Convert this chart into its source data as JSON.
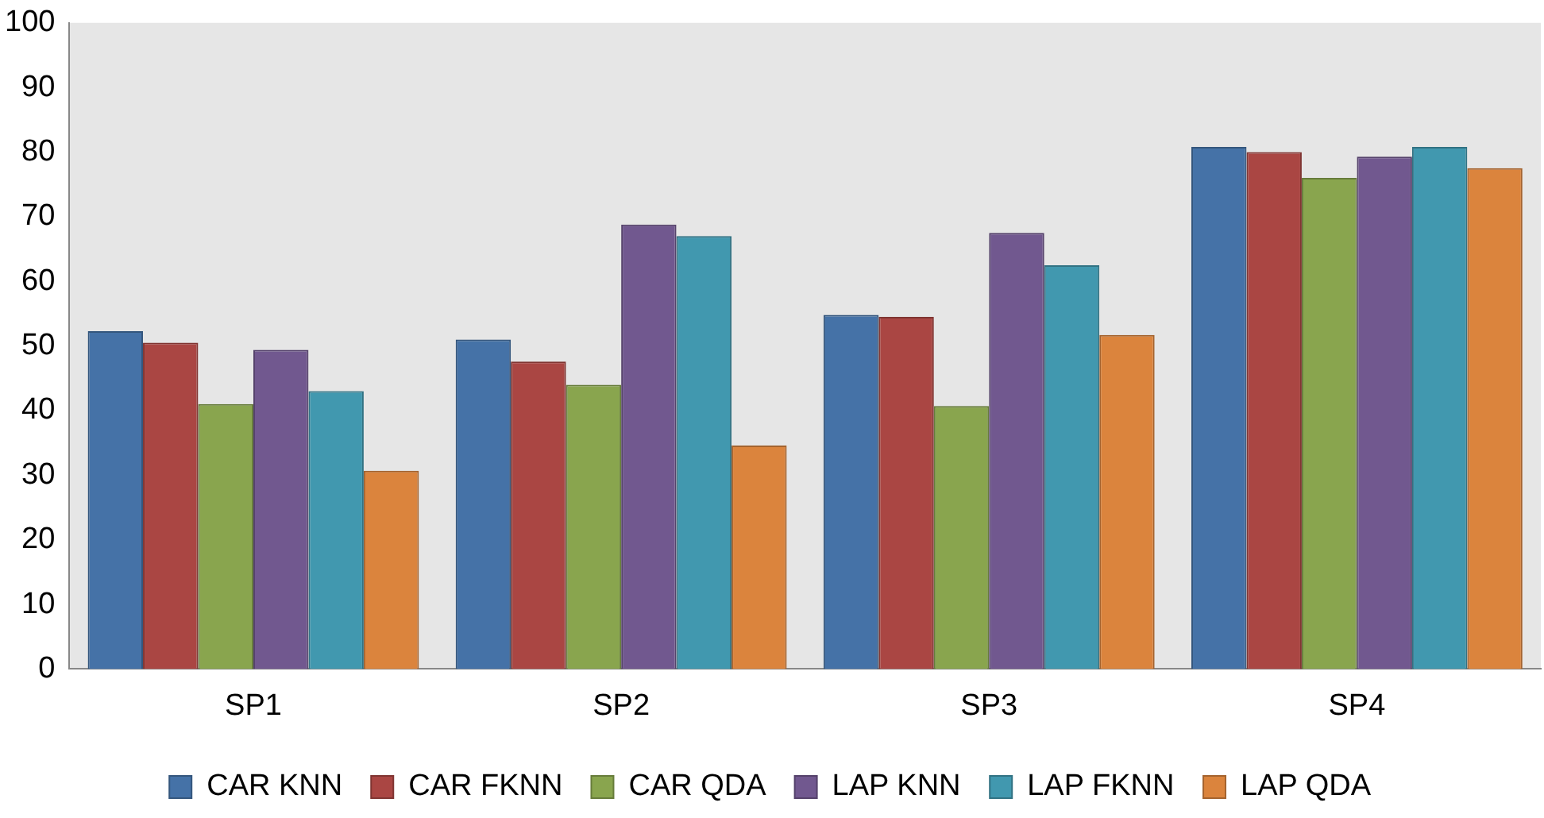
{
  "chart_data": {
    "type": "bar",
    "categories": [
      "SP1",
      "SP2",
      "SP3",
      "SP4"
    ],
    "series": [
      {
        "name": "CAR KNN",
        "color": "#4572a7",
        "values": [
          52.3,
          51,
          54.8,
          80.8
        ]
      },
      {
        "name": "CAR FKNN",
        "color": "#aa4643",
        "values": [
          50.5,
          47.6,
          54.5,
          80
        ]
      },
      {
        "name": "CAR QDA",
        "color": "#89a54e",
        "values": [
          41,
          44,
          40.7,
          76
        ]
      },
      {
        "name": "LAP KNN",
        "color": "#71588f",
        "values": [
          49.4,
          68.8,
          67.5,
          79.3
        ]
      },
      {
        "name": "LAP FKNN",
        "color": "#4198af",
        "values": [
          43,
          67,
          62.5,
          80.8
        ]
      },
      {
        "name": "LAP QDA",
        "color": "#db843d",
        "values": [
          30.7,
          34.6,
          51.7,
          77.5
        ]
      }
    ],
    "ylim": [
      0,
      100
    ],
    "yticks": [
      0,
      10,
      20,
      30,
      40,
      50,
      60,
      70,
      80,
      90,
      100
    ],
    "grid": false,
    "legend": "bottom"
  }
}
